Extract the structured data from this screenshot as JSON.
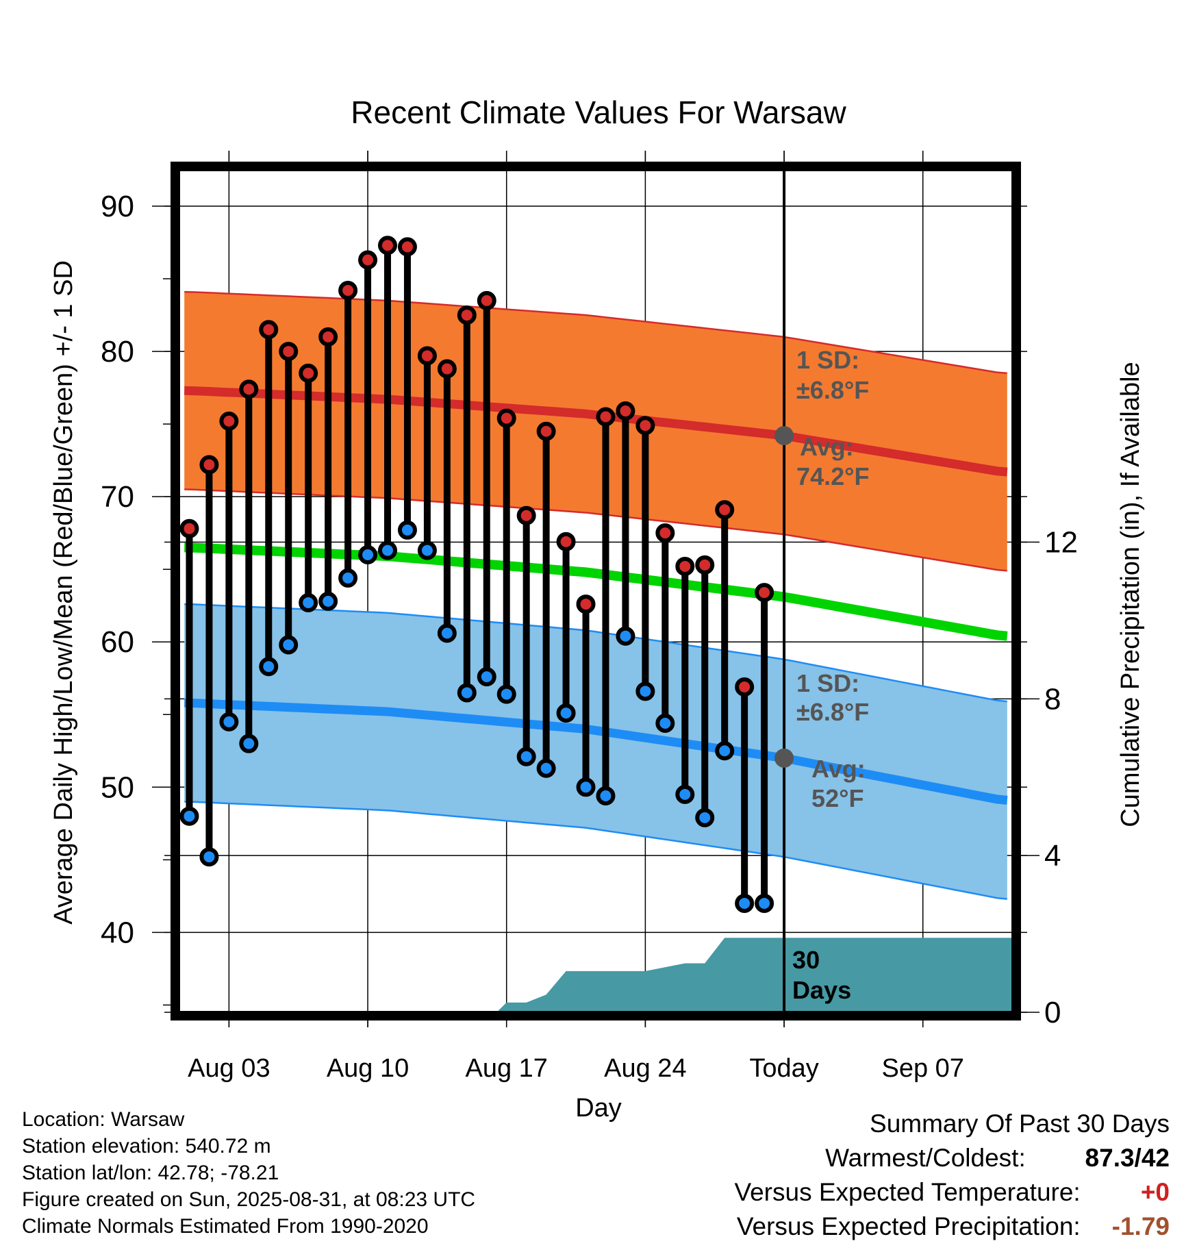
{
  "chart_data": {
    "type": "line",
    "title": "Recent Climate Values For Warsaw",
    "xlabel": "Day",
    "ylabel_left": "Average Daily High/Low/Mean (Red/Blue/Green) +/- 1 SD",
    "ylabel_right": "Cumulative Precipitation (in), If Available",
    "ylim_left": [
      34.5,
      92.5
    ],
    "ylim_right": [
      0,
      21.5
    ],
    "yticks_left": [
      40,
      50,
      60,
      70,
      80,
      90
    ],
    "yticks_right": [
      0,
      4,
      8,
      12
    ],
    "xlim_day": [
      -0.5,
      41.5
    ],
    "xticks": [
      {
        "day": 2,
        "label": "Aug 03"
      },
      {
        "day": 9,
        "label": "Aug 10"
      },
      {
        "day": 16,
        "label": "Aug 17"
      },
      {
        "day": 23,
        "label": "Aug 24"
      },
      {
        "day": 30,
        "label": "Today"
      },
      {
        "day": 37,
        "label": "Sep 07"
      }
    ],
    "today_day": 30,
    "highs": [
      67.8,
      72.2,
      75.2,
      77.4,
      81.5,
      80.0,
      78.5,
      81.0,
      84.2,
      86.3,
      87.3,
      87.2,
      79.7,
      78.8,
      82.5,
      83.5,
      75.4,
      68.7,
      74.5,
      66.9,
      62.6,
      75.5,
      75.9,
      74.9,
      67.5,
      65.2,
      65.3,
      69.1,
      56.9,
      63.4
    ],
    "lows": [
      48.0,
      45.2,
      54.5,
      53.0,
      58.3,
      59.8,
      62.7,
      62.8,
      64.4,
      66.0,
      66.3,
      67.7,
      66.3,
      60.6,
      56.5,
      57.6,
      56.4,
      52.1,
      51.3,
      55.1,
      50.0,
      49.4,
      60.4,
      56.6,
      54.4,
      49.5,
      47.9,
      52.5,
      42.0,
      42.0
    ],
    "normal_high": [
      {
        "day": 0,
        "value": 77.3
      },
      {
        "day": 10,
        "value": 76.7
      },
      {
        "day": 20,
        "value": 75.7
      },
      {
        "day": 30,
        "value": 74.2
      },
      {
        "day": 41,
        "value": 71.7
      }
    ],
    "normal_low": [
      {
        "day": 0,
        "value": 55.8
      },
      {
        "day": 10,
        "value": 55.2
      },
      {
        "day": 20,
        "value": 54.0
      },
      {
        "day": 30,
        "value": 52.0
      },
      {
        "day": 41,
        "value": 49.1
      }
    ],
    "normal_mean": [
      {
        "day": 0,
        "value": 66.5
      },
      {
        "day": 10,
        "value": 65.9
      },
      {
        "day": 20,
        "value": 64.8
      },
      {
        "day": 30,
        "value": 63.1
      },
      {
        "day": 41,
        "value": 60.4
      }
    ],
    "precip_cumulative": [
      {
        "day": 0,
        "value": 0
      },
      {
        "day": 15.5,
        "value": 0
      },
      {
        "day": 16,
        "value": 0.25
      },
      {
        "day": 17,
        "value": 0.25
      },
      {
        "day": 18,
        "value": 0.45
      },
      {
        "day": 19,
        "value": 1.05
      },
      {
        "day": 23,
        "value": 1.05
      },
      {
        "day": 25,
        "value": 1.25
      },
      {
        "day": 26,
        "value": 1.25
      },
      {
        "day": 27,
        "value": 1.9
      },
      {
        "day": 41.5,
        "value": 1.9
      }
    ],
    "annotations": {
      "high_sd_label": "1 SD:",
      "high_sd_value": "±6.8°F",
      "high_avg_label": "Avg:",
      "high_avg_value": "74.2°F",
      "low_sd_label": "1 SD:",
      "low_sd_value": "±6.8°F",
      "low_avg_label": "Avg:",
      "low_avg_value": "52°F",
      "precip_days_1": "30",
      "precip_days_2": "Days"
    },
    "sd": 6.8
  },
  "colors": {
    "high_band": "#F47A30",
    "high_line": "#D42B2B",
    "low_band": "#87C2E8",
    "low_line": "#1E8CF5",
    "mean_line": "#00D400",
    "precip_fill": "#4799A4",
    "high_dot": "#D42B2B",
    "low_dot": "#1E8CF5",
    "annotation_text": "#555555",
    "positive_anomaly": "#D02020",
    "negative_anomaly": "#A0522D"
  },
  "info": {
    "location": "Location: Warsaw",
    "elevation": "Station elevation: 540.72 m",
    "latlon": "Station lat/lon: 42.78; -78.21",
    "created": "Figure created on Sun, 2025-08-31, at 08:23 UTC",
    "normals": "Climate Normals Estimated From 1990-2020"
  },
  "summary": {
    "heading": "Summary Of Past 30 Days",
    "warmest_label": "Warmest/Coldest:",
    "warmest_value": "87.3/42",
    "temp_label": "Versus Expected Temperature:",
    "temp_value": "+0",
    "precip_label": "Versus Expected Precipitation:",
    "precip_value": "-1.79"
  }
}
